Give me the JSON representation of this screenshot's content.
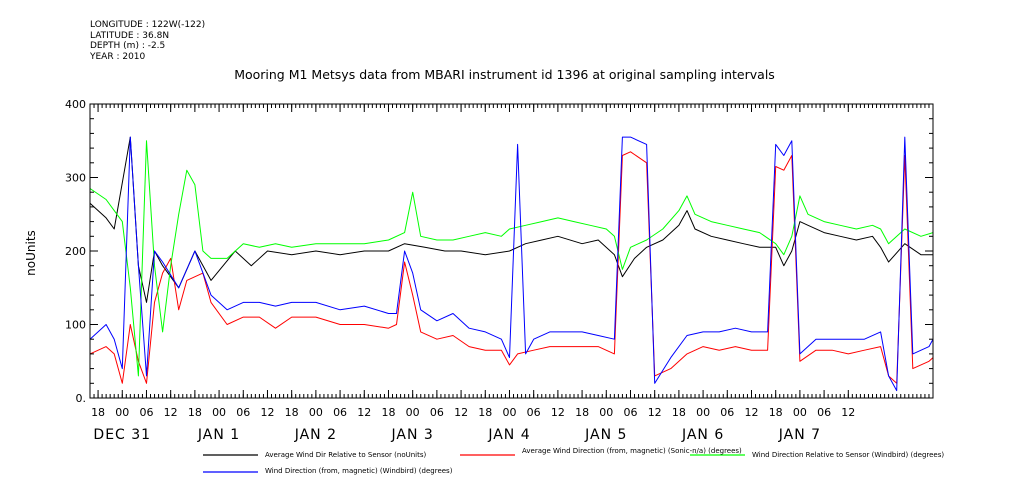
{
  "meta": {
    "longitude": "LONGITUDE : 122W(-122)",
    "latitude": "LATITUDE : 36.8N",
    "depth": "DEPTH (m) : -2.5",
    "year": "YEAR : 2010"
  },
  "chart_data": {
    "type": "line",
    "title": "Mooring M1 Metsys data from MBARI instrument id 1396 at original sampling intervals",
    "ylabel": "noUnits",
    "xlabel": "",
    "ylim": [
      0,
      400
    ],
    "xlim_hours": [
      -8,
      201
    ],
    "yticks": [
      0,
      100,
      200,
      300,
      400
    ],
    "yticklabels": [
      "0.",
      "100",
      "200",
      "300",
      "400"
    ],
    "hour_ticks": [
      "18",
      "00",
      "06",
      "12",
      "18",
      "00",
      "06",
      "12",
      "18",
      "00",
      "06",
      "12",
      "18",
      "00",
      "06",
      "12",
      "18",
      "00",
      "06",
      "12",
      "18",
      "00",
      "06",
      "12",
      "18",
      "00",
      "06",
      "12",
      "18",
      "00",
      "06",
      "12"
    ],
    "day_labels": [
      "DEC 31",
      "JAN 1",
      "JAN 2",
      "JAN 3",
      "JAN 4",
      "JAN 5",
      "JAN 6",
      "JAN 7"
    ],
    "grid": false,
    "legend_position": "bottom",
    "series": [
      {
        "name": "Average Wind Dir Relative to Sensor (noUnits)",
        "color": "#000000",
        "points": [
          [
            -8,
            265
          ],
          [
            -4,
            245
          ],
          [
            -2,
            230
          ],
          [
            2,
            355
          ],
          [
            4,
            180
          ],
          [
            6,
            130
          ],
          [
            8,
            200
          ],
          [
            10,
            180
          ],
          [
            14,
            150
          ],
          [
            18,
            200
          ],
          [
            22,
            160
          ],
          [
            28,
            200
          ],
          [
            32,
            180
          ],
          [
            36,
            200
          ],
          [
            42,
            195
          ],
          [
            48,
            200
          ],
          [
            54,
            195
          ],
          [
            60,
            200
          ],
          [
            66,
            200
          ],
          [
            70,
            210
          ],
          [
            75,
            205
          ],
          [
            80,
            200
          ],
          [
            84,
            200
          ],
          [
            90,
            195
          ],
          [
            96,
            200
          ],
          [
            100,
            210
          ],
          [
            104,
            215
          ],
          [
            108,
            220
          ],
          [
            114,
            210
          ],
          [
            118,
            215
          ],
          [
            122,
            195
          ],
          [
            124,
            165
          ],
          [
            127,
            190
          ],
          [
            130,
            205
          ],
          [
            134,
            215
          ],
          [
            138,
            235
          ],
          [
            140,
            255
          ],
          [
            142,
            230
          ],
          [
            146,
            220
          ],
          [
            150,
            215
          ],
          [
            154,
            210
          ],
          [
            158,
            205
          ],
          [
            162,
            205
          ],
          [
            164,
            180
          ],
          [
            166,
            200
          ],
          [
            168,
            240
          ],
          [
            170,
            235
          ],
          [
            174,
            225
          ],
          [
            178,
            220
          ],
          [
            182,
            215
          ],
          [
            186,
            220
          ],
          [
            188,
            205
          ],
          [
            190,
            185
          ],
          [
            194,
            210
          ],
          [
            198,
            195
          ],
          [
            201,
            195
          ]
        ]
      },
      {
        "name": "Average Wind Direction (from, magnetic) (Sonic-n/a) (degrees)",
        "color": "#ff0000",
        "points": [
          [
            -8,
            60
          ],
          [
            -4,
            70
          ],
          [
            -2,
            60
          ],
          [
            0,
            20
          ],
          [
            2,
            100
          ],
          [
            4,
            50
          ],
          [
            6,
            20
          ],
          [
            8,
            130
          ],
          [
            10,
            170
          ],
          [
            12,
            190
          ],
          [
            14,
            120
          ],
          [
            16,
            160
          ],
          [
            20,
            170
          ],
          [
            22,
            130
          ],
          [
            26,
            100
          ],
          [
            30,
            110
          ],
          [
            34,
            110
          ],
          [
            38,
            95
          ],
          [
            42,
            110
          ],
          [
            48,
            110
          ],
          [
            54,
            100
          ],
          [
            60,
            100
          ],
          [
            66,
            95
          ],
          [
            68,
            100
          ],
          [
            70,
            185
          ],
          [
            72,
            140
          ],
          [
            74,
            90
          ],
          [
            78,
            80
          ],
          [
            82,
            85
          ],
          [
            86,
            70
          ],
          [
            90,
            65
          ],
          [
            94,
            65
          ],
          [
            96,
            45
          ],
          [
            98,
            60
          ],
          [
            102,
            65
          ],
          [
            106,
            70
          ],
          [
            110,
            70
          ],
          [
            114,
            70
          ],
          [
            118,
            70
          ],
          [
            122,
            60
          ],
          [
            124,
            330
          ],
          [
            126,
            335
          ],
          [
            130,
            320
          ],
          [
            132,
            30
          ],
          [
            136,
            40
          ],
          [
            140,
            60
          ],
          [
            144,
            70
          ],
          [
            148,
            65
          ],
          [
            152,
            70
          ],
          [
            156,
            65
          ],
          [
            160,
            65
          ],
          [
            162,
            315
          ],
          [
            164,
            310
          ],
          [
            166,
            330
          ],
          [
            168,
            50
          ],
          [
            172,
            65
          ],
          [
            176,
            65
          ],
          [
            180,
            60
          ],
          [
            184,
            65
          ],
          [
            188,
            70
          ],
          [
            190,
            30
          ],
          [
            192,
            20
          ],
          [
            194,
            330
          ],
          [
            196,
            40
          ],
          [
            200,
            50
          ],
          [
            201,
            55
          ]
        ]
      },
      {
        "name": "Wind Direction Relative to Sensor (Windbird) (degrees)",
        "color": "#00ff00",
        "points": [
          [
            -8,
            285
          ],
          [
            -4,
            270
          ],
          [
            -2,
            255
          ],
          [
            0,
            240
          ],
          [
            2,
            150
          ],
          [
            4,
            30
          ],
          [
            6,
            350
          ],
          [
            8,
            180
          ],
          [
            10,
            90
          ],
          [
            12,
            180
          ],
          [
            14,
            250
          ],
          [
            16,
            310
          ],
          [
            18,
            290
          ],
          [
            20,
            200
          ],
          [
            22,
            190
          ],
          [
            26,
            190
          ],
          [
            30,
            210
          ],
          [
            34,
            205
          ],
          [
            38,
            210
          ],
          [
            42,
            205
          ],
          [
            48,
            210
          ],
          [
            54,
            210
          ],
          [
            60,
            210
          ],
          [
            66,
            215
          ],
          [
            70,
            225
          ],
          [
            72,
            280
          ],
          [
            74,
            220
          ],
          [
            78,
            215
          ],
          [
            82,
            215
          ],
          [
            86,
            220
          ],
          [
            90,
            225
          ],
          [
            94,
            220
          ],
          [
            96,
            230
          ],
          [
            100,
            235
          ],
          [
            104,
            240
          ],
          [
            108,
            245
          ],
          [
            112,
            240
          ],
          [
            116,
            235
          ],
          [
            120,
            230
          ],
          [
            122,
            220
          ],
          [
            124,
            175
          ],
          [
            126,
            205
          ],
          [
            130,
            215
          ],
          [
            134,
            230
          ],
          [
            138,
            255
          ],
          [
            140,
            275
          ],
          [
            142,
            250
          ],
          [
            146,
            240
          ],
          [
            150,
            235
          ],
          [
            154,
            230
          ],
          [
            158,
            225
          ],
          [
            162,
            210
          ],
          [
            164,
            195
          ],
          [
            166,
            220
          ],
          [
            168,
            275
          ],
          [
            170,
            250
          ],
          [
            174,
            240
          ],
          [
            178,
            235
          ],
          [
            182,
            230
          ],
          [
            186,
            235
          ],
          [
            188,
            230
          ],
          [
            190,
            210
          ],
          [
            194,
            230
          ],
          [
            198,
            220
          ],
          [
            201,
            225
          ]
        ]
      },
      {
        "name": "Wind Direction (from, magnetic) (Windbird) (degrees)",
        "color": "#0000ff",
        "points": [
          [
            -8,
            80
          ],
          [
            -4,
            100
          ],
          [
            -2,
            80
          ],
          [
            0,
            40
          ],
          [
            2,
            355
          ],
          [
            4,
            180
          ],
          [
            6,
            30
          ],
          [
            8,
            200
          ],
          [
            10,
            185
          ],
          [
            14,
            150
          ],
          [
            18,
            200
          ],
          [
            22,
            140
          ],
          [
            26,
            120
          ],
          [
            30,
            130
          ],
          [
            34,
            130
          ],
          [
            38,
            125
          ],
          [
            42,
            130
          ],
          [
            48,
            130
          ],
          [
            54,
            120
          ],
          [
            60,
            125
          ],
          [
            66,
            115
          ],
          [
            68,
            115
          ],
          [
            70,
            200
          ],
          [
            72,
            170
          ],
          [
            74,
            120
          ],
          [
            78,
            105
          ],
          [
            82,
            115
          ],
          [
            86,
            95
          ],
          [
            90,
            90
          ],
          [
            94,
            80
          ],
          [
            96,
            55
          ],
          [
            98,
            345
          ],
          [
            100,
            60
          ],
          [
            102,
            80
          ],
          [
            106,
            90
          ],
          [
            110,
            90
          ],
          [
            114,
            90
          ],
          [
            118,
            85
          ],
          [
            122,
            80
          ],
          [
            124,
            355
          ],
          [
            126,
            355
          ],
          [
            130,
            345
          ],
          [
            132,
            20
          ],
          [
            136,
            55
          ],
          [
            140,
            85
          ],
          [
            144,
            90
          ],
          [
            148,
            90
          ],
          [
            152,
            95
          ],
          [
            156,
            90
          ],
          [
            160,
            90
          ],
          [
            162,
            345
          ],
          [
            164,
            330
          ],
          [
            166,
            350
          ],
          [
            168,
            60
          ],
          [
            172,
            80
          ],
          [
            176,
            80
          ],
          [
            180,
            80
          ],
          [
            184,
            80
          ],
          [
            188,
            90
          ],
          [
            190,
            30
          ],
          [
            192,
            10
          ],
          [
            194,
            355
          ],
          [
            196,
            60
          ],
          [
            200,
            70
          ],
          [
            201,
            80
          ]
        ]
      }
    ]
  }
}
